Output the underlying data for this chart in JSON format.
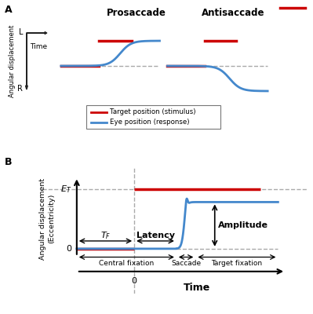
{
  "title_A": "A",
  "title_B": "B",
  "prosaccade_label": "Prosaccade",
  "antisaccade_label": "Antisaccade",
  "legend_target": "Target position (stimulus)",
  "legend_eye": "Eye position (response)",
  "ylabel_A": "Angular displacement",
  "ylabel_B": "Angular displacement\n(Eccentricity)",
  "xlabel_B": "Time",
  "label_L": "L",
  "label_R": "R",
  "label_Time": "Time",
  "label_ET": "$E_T$",
  "label_TF": "$T_F$",
  "label_Latency": "Latency",
  "label_Amplitude": "Amplitude",
  "label_0_y": "0",
  "label_0_x": "0",
  "label_central": "Central fixation",
  "label_saccade": "Saccade",
  "label_target_fix": "Target fixation",
  "red_color": "#cc0000",
  "blue_color": "#4488cc",
  "background": "#ffffff",
  "dashed_gray": "#aaaaaa",
  "arrow_color": "#222222"
}
